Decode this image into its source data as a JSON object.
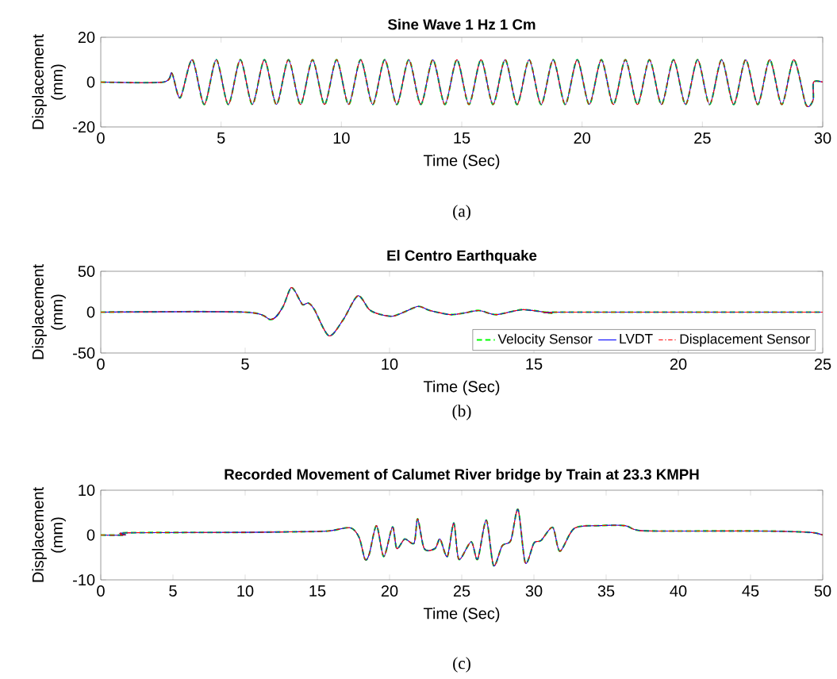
{
  "chart_data": [
    {
      "type": "line",
      "title": "Sine Wave 1 Hz 1 Cm",
      "xlabel": "Time (Sec)",
      "ylabel": "Displacement (mm)",
      "annotations": [
        "(a)"
      ],
      "x": [
        0,
        2.6,
        2.95,
        3.3,
        3.8,
        4.3,
        4.8,
        5.3,
        5.8,
        6.3,
        6.8,
        7.3,
        7.8,
        8.3,
        8.8,
        9.3,
        9.8,
        10.3,
        10.8,
        11.3,
        11.8,
        12.3,
        12.8,
        13.3,
        13.8,
        14.3,
        14.8,
        15.3,
        15.8,
        16.3,
        16.8,
        17.3,
        17.8,
        18.3,
        18.8,
        19.3,
        19.8,
        20.3,
        20.8,
        21.3,
        21.8,
        22.3,
        22.8,
        23.3,
        23.8,
        24.3,
        24.8,
        25.3,
        25.8,
        26.3,
        26.8,
        27.3,
        27.8,
        28.3,
        28.8,
        29.3,
        29.6,
        29.62,
        30
      ],
      "series": [
        {
          "color": "#00ff00",
          "line_style": "dashed",
          "values": [
            0,
            0,
            4,
            -7,
            10,
            -10,
            10,
            -10,
            10,
            -10,
            10,
            -10,
            10,
            -10,
            10,
            -10,
            10,
            -10,
            10,
            -10,
            10,
            -10,
            10,
            -10,
            10,
            -10,
            10,
            -10,
            10,
            -10,
            10,
            -10,
            10,
            -10,
            10,
            -10,
            10,
            -10,
            10,
            -10,
            10,
            -10,
            10,
            -10,
            10,
            -10,
            10,
            -10,
            10,
            -10,
            10,
            -10,
            10,
            -10,
            10,
            -10,
            -8,
            0,
            0
          ]
        },
        {
          "color": "#0000ff",
          "line_style": "solid",
          "values": [
            0,
            0,
            4,
            -7,
            10,
            -10,
            10,
            -10,
            10,
            -10,
            10,
            -10,
            10,
            -10,
            10,
            -10,
            10,
            -10,
            10,
            -10,
            10,
            -10,
            10,
            -10,
            10,
            -10,
            10,
            -10,
            10,
            -10,
            10,
            -10,
            10,
            -10,
            10,
            -10,
            10,
            -10,
            10,
            -10,
            10,
            -10,
            10,
            -10,
            10,
            -10,
            10,
            -10,
            10,
            -10,
            10,
            -10,
            10,
            -10,
            10,
            -10,
            -8,
            0,
            0
          ]
        },
        {
          "color": "#ff0000",
          "line_style": "dashdot",
          "values": [
            0,
            0,
            4,
            -7,
            10,
            -10,
            10,
            -10,
            10,
            -10,
            10,
            -10,
            10,
            -10,
            10,
            -10,
            10,
            -10,
            10,
            -10,
            10,
            -10,
            10,
            -10,
            10,
            -10,
            10,
            -10,
            10,
            -10,
            10,
            -10,
            10,
            -10,
            10,
            -10,
            10,
            -10,
            10,
            -10,
            10,
            -10,
            10,
            -10,
            10,
            -10,
            10,
            -10,
            10,
            -10,
            10,
            -10,
            10,
            -10,
            10,
            -10,
            -8,
            0,
            0
          ]
        }
      ],
      "xlim": [
        0,
        30
      ],
      "ylim": [
        -20,
        20
      ],
      "xticks": [
        0,
        5,
        10,
        15,
        20,
        25,
        30
      ],
      "yticks": [
        -20,
        0,
        20
      ]
    },
    {
      "type": "line",
      "title": "El Centro Earthquake",
      "xlabel": "Time (Sec)",
      "ylabel": "Displacement (mm)",
      "annotations": [
        "(b)"
      ],
      "x": [
        0,
        5,
        5.9,
        6.3,
        6.6,
        6.9,
        7,
        7.2,
        7.4,
        7.9,
        8.4,
        8.9,
        9.3,
        9.7,
        10.1,
        10.5,
        11,
        11.4,
        12.1,
        12.6,
        13.1,
        13.7,
        14.6,
        15.6,
        16,
        25
      ],
      "series": [
        {
          "name": "Velocity Sensor",
          "color": "#00ff00",
          "line_style": "dashed",
          "values": [
            0,
            0,
            -9,
            6,
            30,
            14,
            9,
            11,
            3,
            -29,
            -9,
            20,
            3,
            -3,
            -5,
            0,
            7,
            2,
            -3,
            -1,
            2,
            -3,
            3,
            -1,
            0,
            0
          ]
        },
        {
          "name": "LVDT",
          "color": "#0000ff",
          "line_style": "solid",
          "values": [
            0,
            0,
            -9,
            6,
            30,
            14,
            9,
            11,
            3,
            -29,
            -9,
            20,
            3,
            -3,
            -5,
            0,
            7,
            2,
            -3,
            -1,
            2,
            -3,
            3,
            -1,
            0,
            0
          ]
        },
        {
          "name": "Displacement Sensor",
          "color": "#ff0000",
          "line_style": "dashdot",
          "values": [
            0,
            0,
            -9,
            6,
            30,
            14,
            9,
            11,
            3,
            -29,
            -9,
            20,
            3,
            -3,
            -5,
            0,
            7,
            2,
            -3,
            -1,
            2,
            -3,
            3,
            -1,
            0,
            0
          ]
        }
      ],
      "xlim": [
        0,
        25
      ],
      "ylim": [
        -50,
        50
      ],
      "xticks": [
        0,
        5,
        10,
        15,
        20,
        25
      ],
      "yticks": [
        -50,
        0,
        50
      ],
      "legend": "bottom right"
    },
    {
      "type": "line",
      "title": "Recorded Movement of Calumet River bridge by Train at 23.3 KMPH",
      "xlabel": "Time (Sec)",
      "ylabel": "Displacement (mm)",
      "annotations": [
        "(c)"
      ],
      "x": [
        0,
        1.7,
        1.8,
        10,
        15,
        16,
        17.3,
        17.9,
        18.3,
        18.6,
        19.1,
        19.6,
        20.2,
        20.5,
        21.05,
        21.7,
        21.95,
        22.4,
        23.15,
        23.5,
        24,
        24.45,
        24.8,
        25.65,
        26.1,
        26.7,
        27.2,
        27.8,
        28.4,
        28.9,
        29.4,
        30,
        30.5,
        31.3,
        31.8,
        32.8,
        34.6,
        36.3,
        37,
        38.3,
        45.7,
        49.1,
        50
      ],
      "series": [
        {
          "color": "#00ff00",
          "line_style": "dashed",
          "values": [
            0,
            0,
            0.5,
            0.6,
            0.8,
            1,
            1.6,
            -0.6,
            -5.4,
            -4.2,
            2.1,
            -4.8,
            1.8,
            -3,
            -0.9,
            -1.8,
            3.6,
            -3,
            -3,
            -0.9,
            -4.8,
            2.7,
            -5.4,
            -1.5,
            -5.4,
            3.3,
            -6.8,
            -2.4,
            -1.2,
            5.7,
            -6.2,
            -1.8,
            -1.2,
            1.7,
            -3.6,
            1.5,
            2.1,
            2.1,
            1.2,
            0.9,
            0.9,
            0.6,
            0
          ]
        },
        {
          "color": "#0000ff",
          "line_style": "solid",
          "values": [
            0,
            0,
            0.5,
            0.6,
            0.8,
            1,
            1.6,
            -0.6,
            -5.4,
            -4.2,
            2.1,
            -4.8,
            1.8,
            -3,
            -0.9,
            -1.8,
            3.6,
            -3,
            -3,
            -0.9,
            -4.8,
            2.7,
            -5.4,
            -1.5,
            -5.4,
            3.3,
            -6.8,
            -2.4,
            -1.2,
            5.7,
            -6.2,
            -1.8,
            -1.2,
            1.7,
            -3.6,
            1.5,
            2.1,
            2.1,
            1.2,
            0.9,
            0.9,
            0.6,
            0
          ]
        },
        {
          "color": "#ff0000",
          "line_style": "dashdot",
          "values": [
            0,
            0,
            0.5,
            0.6,
            0.8,
            1,
            1.6,
            -0.6,
            -5.4,
            -4.2,
            2.1,
            -4.8,
            1.8,
            -3,
            -0.9,
            -1.8,
            3.6,
            -3,
            -3,
            -0.9,
            -4.8,
            2.7,
            -5.4,
            -1.5,
            -5.4,
            3.3,
            -6.8,
            -2.4,
            -1.2,
            5.7,
            -6.2,
            -1.8,
            -1.2,
            1.7,
            -3.6,
            1.5,
            2.1,
            2.1,
            1.2,
            0.9,
            0.9,
            0.6,
            0
          ]
        }
      ],
      "xlim": [
        0,
        50
      ],
      "ylim": [
        -10,
        10
      ],
      "xticks": [
        0,
        5,
        10,
        15,
        20,
        25,
        30,
        35,
        40,
        45,
        50
      ],
      "yticks": [
        -10,
        0,
        10
      ]
    }
  ]
}
